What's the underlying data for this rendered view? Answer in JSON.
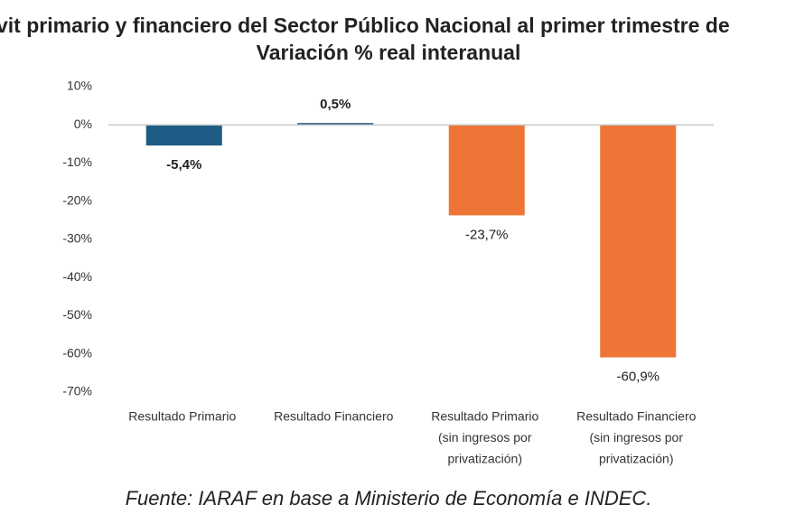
{
  "chart_data": {
    "type": "bar",
    "title": "vit primario y financiero del Sector Público Nacional al primer trimestre de",
    "subtitle": "Variación % real interanual",
    "categories": [
      [
        "Resultado Primario"
      ],
      [
        "Resultado Financiero"
      ],
      [
        "Resultado Primario",
        "(sin ingresos por",
        "privatización)"
      ],
      [
        "Resultado Financiero",
        "(sin ingresos por",
        "privatización)"
      ]
    ],
    "values": [
      -5.4,
      0.5,
      -23.7,
      -60.9
    ],
    "value_labels": [
      "-5,4%",
      "0,5%",
      "-23,7%",
      "-60,9%"
    ],
    "colors": [
      "#1f5c85",
      "#1f5c85",
      "#ed7536",
      "#ed7536"
    ],
    "ylim": [
      -70,
      10
    ],
    "yticks": [
      {
        "value": 10,
        "label": "10%"
      },
      {
        "value": 0,
        "label": "0%"
      },
      {
        "value": -10,
        "label": "-10%"
      },
      {
        "value": -20,
        "label": "-20%"
      },
      {
        "value": -30,
        "label": "-30%"
      },
      {
        "value": -40,
        "label": "-40%"
      },
      {
        "value": -50,
        "label": "-50%"
      },
      {
        "value": -60,
        "label": "-60%"
      },
      {
        "value": -70,
        "label": "-70%"
      }
    ],
    "note": "Fuente: IARAF en base a Ministerio de Economía e INDEC."
  }
}
